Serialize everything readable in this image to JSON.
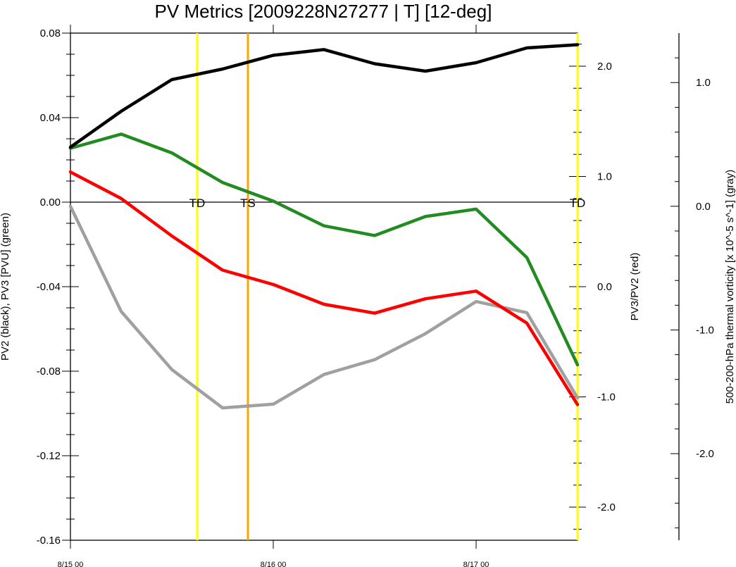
{
  "chart_data": {
    "type": "line",
    "title": "PV Metrics [2009228N27277 | T] [12-deg]",
    "x_tick_labels": [
      "8/15 00",
      "8/16 00",
      "8/17 00"
    ],
    "x_tick_hours": [
      0,
      24,
      48
    ],
    "x_hours": [
      0,
      6,
      12,
      18,
      24,
      30,
      36,
      42,
      48,
      54,
      60
    ],
    "xlim": [
      0,
      60
    ],
    "grid": false,
    "left_axis": {
      "label": "PV2 (black), PV3 [PVU] (green)",
      "ylim": [
        -0.16,
        0.08
      ],
      "ticks": [
        0.08,
        0.04,
        0.0,
        -0.04,
        -0.08,
        -0.12,
        -0.16
      ],
      "tick_labels": [
        "0.08",
        "0.04",
        "0.00",
        "-0.04",
        "-0.08",
        "-0.12",
        "-0.16"
      ]
    },
    "right_axis": {
      "label": "PV3/PV2 (red)",
      "ylim": [
        -2.3,
        2.3
      ],
      "ticks": [
        2.0,
        1.0,
        0.0,
        -1.0,
        -2.0
      ],
      "tick_labels": [
        "2.0",
        "1.0",
        "0.0",
        "-1.0",
        "-2.0"
      ]
    },
    "far_right_axis": {
      "label": "500-200-hPa thermal vorticity [x 10^-5 s^-1] (gray)",
      "ylim": [
        -2.7,
        1.4
      ],
      "ticks": [
        1.0,
        0.0,
        -1.0,
        -2.0
      ],
      "tick_labels": [
        "1.0",
        "0.0",
        "-1.0",
        "-2.0"
      ]
    },
    "series": [
      {
        "name": "PV2",
        "axis": "left",
        "color": "#000000",
        "values": [
          0.026,
          0.043,
          0.058,
          0.063,
          0.0695,
          0.0722,
          0.0655,
          0.062,
          0.066,
          0.073,
          0.0745
        ]
      },
      {
        "name": "PV3",
        "axis": "left",
        "color": "#228b22",
        "values": [
          0.0255,
          0.0322,
          0.0233,
          0.0093,
          0.0005,
          -0.0112,
          -0.0158,
          -0.0068,
          -0.0033,
          -0.0262,
          -0.077
        ]
      },
      {
        "name": "PV3/PV2",
        "axis": "right",
        "color": "#ff0000",
        "values": [
          1.04,
          0.8,
          0.46,
          0.15,
          0.02,
          -0.16,
          -0.24,
          -0.11,
          -0.04,
          -0.33,
          -1.07
        ]
      },
      {
        "name": "thermal vorticity",
        "axis": "far_right",
        "color": "#a0a0a0",
        "values": [
          0.0,
          -0.85,
          -1.32,
          -1.63,
          -1.6,
          -1.36,
          -1.24,
          -1.03,
          -0.77,
          -0.86,
          -1.55
        ]
      }
    ],
    "zero_line": 0.0,
    "event_lines": [
      {
        "hour": 15,
        "color": "#ffff00"
      },
      {
        "hour": 21,
        "color": "#ffa500"
      },
      {
        "hour": 60,
        "color": "#ffff00"
      }
    ],
    "annotations": [
      {
        "text": "TD",
        "hour": 15
      },
      {
        "text": "TS",
        "hour": 21
      },
      {
        "text": "TD",
        "hour": 60
      }
    ]
  }
}
